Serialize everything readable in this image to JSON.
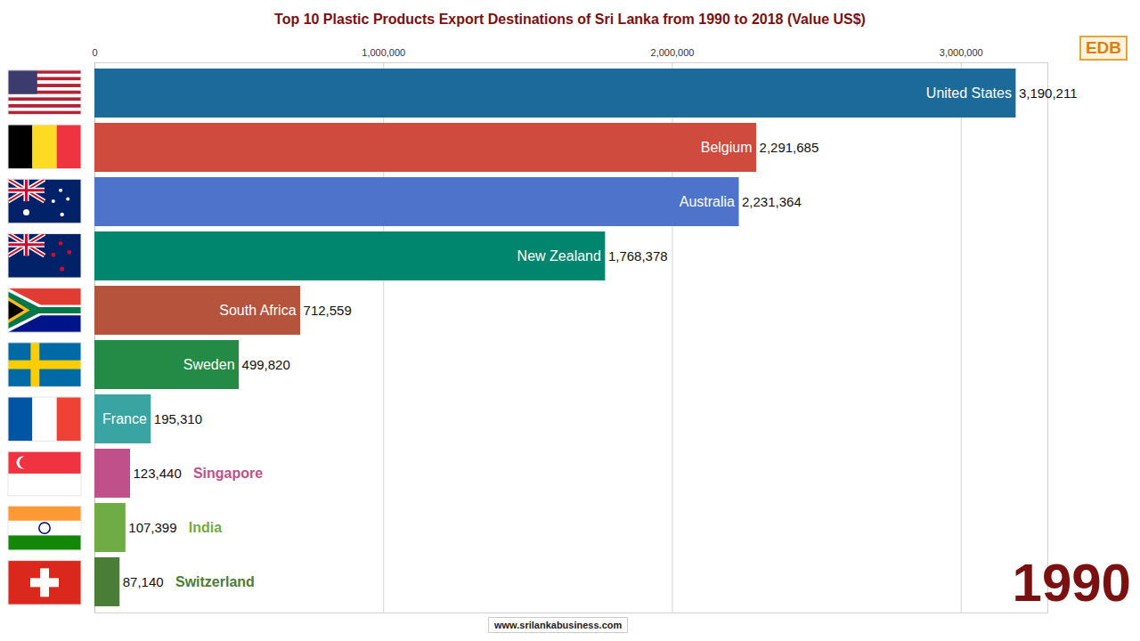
{
  "chart_data": {
    "type": "bar",
    "orientation": "horizontal",
    "title": "Top 10 Plastic Products Export Destinations of Sri Lanka from 1990 to 2018 (Value US$)",
    "categories": [
      "United States",
      "Belgium",
      "Australia",
      "New Zealand",
      "South Africa",
      "Sweden",
      "France",
      "Singapore",
      "India",
      "Switzerland"
    ],
    "values": [
      3190211,
      2291685,
      2231364,
      1768378,
      712559,
      499820,
      195310,
      123440,
      107399,
      87140
    ],
    "value_labels": [
      "3,190,211",
      "2,291,685",
      "2,231,364",
      "1,768,378",
      "712,559",
      "499,820",
      "195,310",
      "123,440",
      "107,399",
      "87,140"
    ],
    "colors": [
      "#1b6a9a",
      "#cf4b3e",
      "#4e73cb",
      "#00856f",
      "#b5533c",
      "#238b45",
      "#3aa4a3",
      "#c0508a",
      "#6fac46",
      "#4a7d35"
    ],
    "xlim": [
      0,
      3300000
    ],
    "xticks": [
      0,
      {
        "value": 1000000,
        "label": "1,000,000"
      },
      {
        "value": 2000000,
        "label": "2,000,000"
      },
      {
        "value": 3000000,
        "label": "3,000,000"
      }
    ],
    "grid": true,
    "data_labels": true,
    "annotations": [
      "1990",
      "www.srilankabusiness.com",
      "EDB"
    ]
  }
}
